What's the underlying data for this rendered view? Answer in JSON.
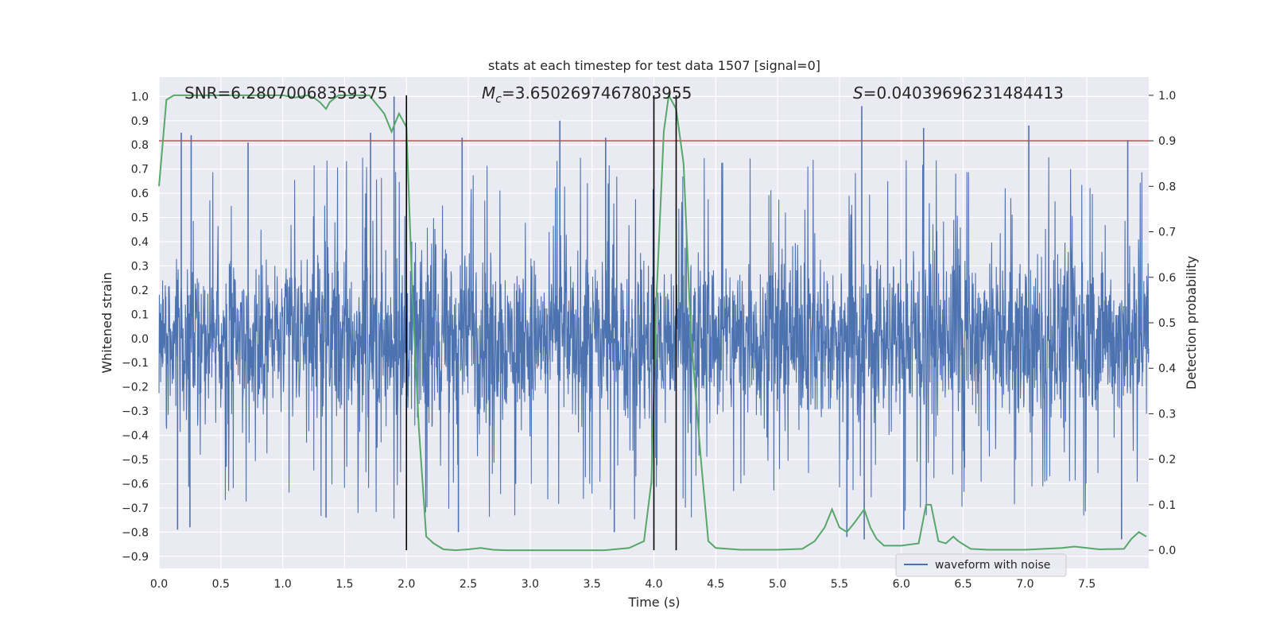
{
  "chart_data": {
    "type": "line",
    "title": "stats at each timestep for test data 1507 [signal=0]",
    "xlabel": "Time (s)",
    "ylabel_left": "Whitened strain",
    "ylabel_right": "Detection probability",
    "xlim": [
      0.0,
      8.0
    ],
    "ylim_left": [
      -0.95,
      1.08
    ],
    "ylim_right": [
      -0.04,
      1.04
    ],
    "grid": true,
    "x_ticks": [
      0.0,
      0.5,
      1.0,
      1.5,
      2.0,
      2.5,
      3.0,
      3.5,
      4.0,
      4.5,
      5.0,
      5.5,
      6.0,
      6.5,
      7.0,
      7.5
    ],
    "x_tick_labels": [
      "0.0",
      "0.5",
      "1.0",
      "1.5",
      "2.0",
      "2.5",
      "3.0",
      "3.5",
      "4.0",
      "4.5",
      "5.0",
      "5.5",
      "6.0",
      "6.5",
      "7.0",
      "7.5"
    ],
    "y_left_ticks": [
      1.0,
      0.9,
      0.8,
      0.7,
      0.6,
      0.5,
      0.4,
      0.3,
      0.2,
      0.1,
      0.0,
      -0.1,
      -0.2,
      -0.3,
      -0.4,
      -0.5,
      -0.6,
      -0.7,
      -0.8,
      -0.9
    ],
    "y_left_tick_labels": [
      "1.0",
      "0.9",
      "0.8",
      "0.7",
      "0.6",
      "0.5",
      "0.4",
      "0.3",
      "0.2",
      "0.1",
      "0.0",
      "−0.1",
      "−0.2",
      "−0.3",
      "−0.4",
      "−0.5",
      "−0.6",
      "−0.7",
      "−0.8",
      "−0.9"
    ],
    "y_right_ticks": [
      1.0,
      0.9,
      0.8,
      0.7,
      0.6,
      0.5,
      0.4,
      0.3,
      0.2,
      0.1,
      0.0
    ],
    "y_right_tick_labels": [
      "1.0",
      "0.9",
      "0.8",
      "0.7",
      "0.6",
      "0.5",
      "0.4",
      "0.3",
      "0.2",
      "0.1",
      "0.0"
    ],
    "annotations": {
      "snr": "SNR=6.28070068359375",
      "mc_symbol": "M",
      "mc_sub": "c",
      "mc_value": "=3.6502697467803955",
      "s_symbol": "S",
      "s_value": "=0.04039696231484413"
    },
    "legend": {
      "location": "lower-right",
      "entries": [
        "waveform with noise"
      ]
    },
    "threshold_right": 0.9,
    "vertical_lines_x": [
      2.0,
      4.0,
      4.18
    ],
    "colors": {
      "waveform": "#4c72b0",
      "probability": "#55a868",
      "threshold": "#c44e52",
      "markers": "#000000",
      "plot_bg": "#eaeaf2",
      "grid": "#ffffff"
    },
    "waveform_envelope": {
      "typical_abs": 0.45,
      "max": 1.0,
      "min": -0.85
    },
    "waveform_peaks": [
      {
        "x": 0.18,
        "y": 0.85
      },
      {
        "x": 0.26,
        "y": 0.84
      },
      {
        "x": 0.72,
        "y": 0.81
      },
      {
        "x": 1.71,
        "y": 0.85
      },
      {
        "x": 1.9,
        "y": 1.0
      },
      {
        "x": 2.45,
        "y": 0.83
      },
      {
        "x": 3.24,
        "y": 0.9
      },
      {
        "x": 3.61,
        "y": 0.83
      },
      {
        "x": 5.68,
        "y": 0.96
      },
      {
        "x": 6.18,
        "y": 0.87
      },
      {
        "x": 7.03,
        "y": 0.88
      },
      {
        "x": 7.83,
        "y": 0.82
      },
      {
        "x": 0.15,
        "y": -0.79
      },
      {
        "x": 0.25,
        "y": -0.78
      },
      {
        "x": 1.35,
        "y": -0.74
      },
      {
        "x": 2.42,
        "y": -0.8
      },
      {
        "x": 3.68,
        "y": -0.8
      },
      {
        "x": 5.56,
        "y": -0.82
      },
      {
        "x": 5.7,
        "y": -0.83
      },
      {
        "x": 6.02,
        "y": -0.79
      },
      {
        "x": 7.78,
        "y": -0.83
      }
    ],
    "probability": {
      "x": [
        0.0,
        0.06,
        0.12,
        0.2,
        0.3,
        0.4,
        0.5,
        0.6,
        0.7,
        0.8,
        0.9,
        1.0,
        1.1,
        1.2,
        1.25,
        1.3,
        1.35,
        1.38,
        1.45,
        1.5,
        1.6,
        1.7,
        1.76,
        1.82,
        1.88,
        1.94,
        2.0,
        2.05,
        2.1,
        2.16,
        2.22,
        2.3,
        2.4,
        2.5,
        2.6,
        2.7,
        2.8,
        3.0,
        3.2,
        3.4,
        3.6,
        3.8,
        3.92,
        3.98,
        4.02,
        4.08,
        4.12,
        4.18,
        4.24,
        4.3,
        4.38,
        4.44,
        4.5,
        4.7,
        5.0,
        5.2,
        5.3,
        5.38,
        5.44,
        5.5,
        5.56,
        5.62,
        5.7,
        5.75,
        5.8,
        5.86,
        6.0,
        6.14,
        6.2,
        6.24,
        6.3,
        6.36,
        6.42,
        6.46,
        6.56,
        6.7,
        6.9,
        7.0,
        7.3,
        7.4,
        7.6,
        7.8,
        7.86,
        7.92,
        7.98
      ],
      "y": [
        0.8,
        0.99,
        1.0,
        1.0,
        1.0,
        1.0,
        1.0,
        1.0,
        1.0,
        1.0,
        1.0,
        1.0,
        0.995,
        1.0,
        0.995,
        0.985,
        0.97,
        0.985,
        1.0,
        1.0,
        1.0,
        1.0,
        0.98,
        0.96,
        0.92,
        0.96,
        0.93,
        0.55,
        0.27,
        0.03,
        0.015,
        0.002,
        0.0,
        0.002,
        0.005,
        0.001,
        0.0,
        0.0,
        0.0,
        0.0,
        0.0,
        0.005,
        0.02,
        0.15,
        0.55,
        0.92,
        1.0,
        0.97,
        0.85,
        0.47,
        0.2,
        0.02,
        0.005,
        0.001,
        0.001,
        0.003,
        0.02,
        0.05,
        0.09,
        0.05,
        0.04,
        0.06,
        0.09,
        0.05,
        0.025,
        0.01,
        0.01,
        0.015,
        0.1,
        0.1,
        0.02,
        0.015,
        0.03,
        0.02,
        0.003,
        0.001,
        0.001,
        0.001,
        0.005,
        0.008,
        0.002,
        0.003,
        0.025,
        0.04,
        0.03
      ]
    }
  }
}
